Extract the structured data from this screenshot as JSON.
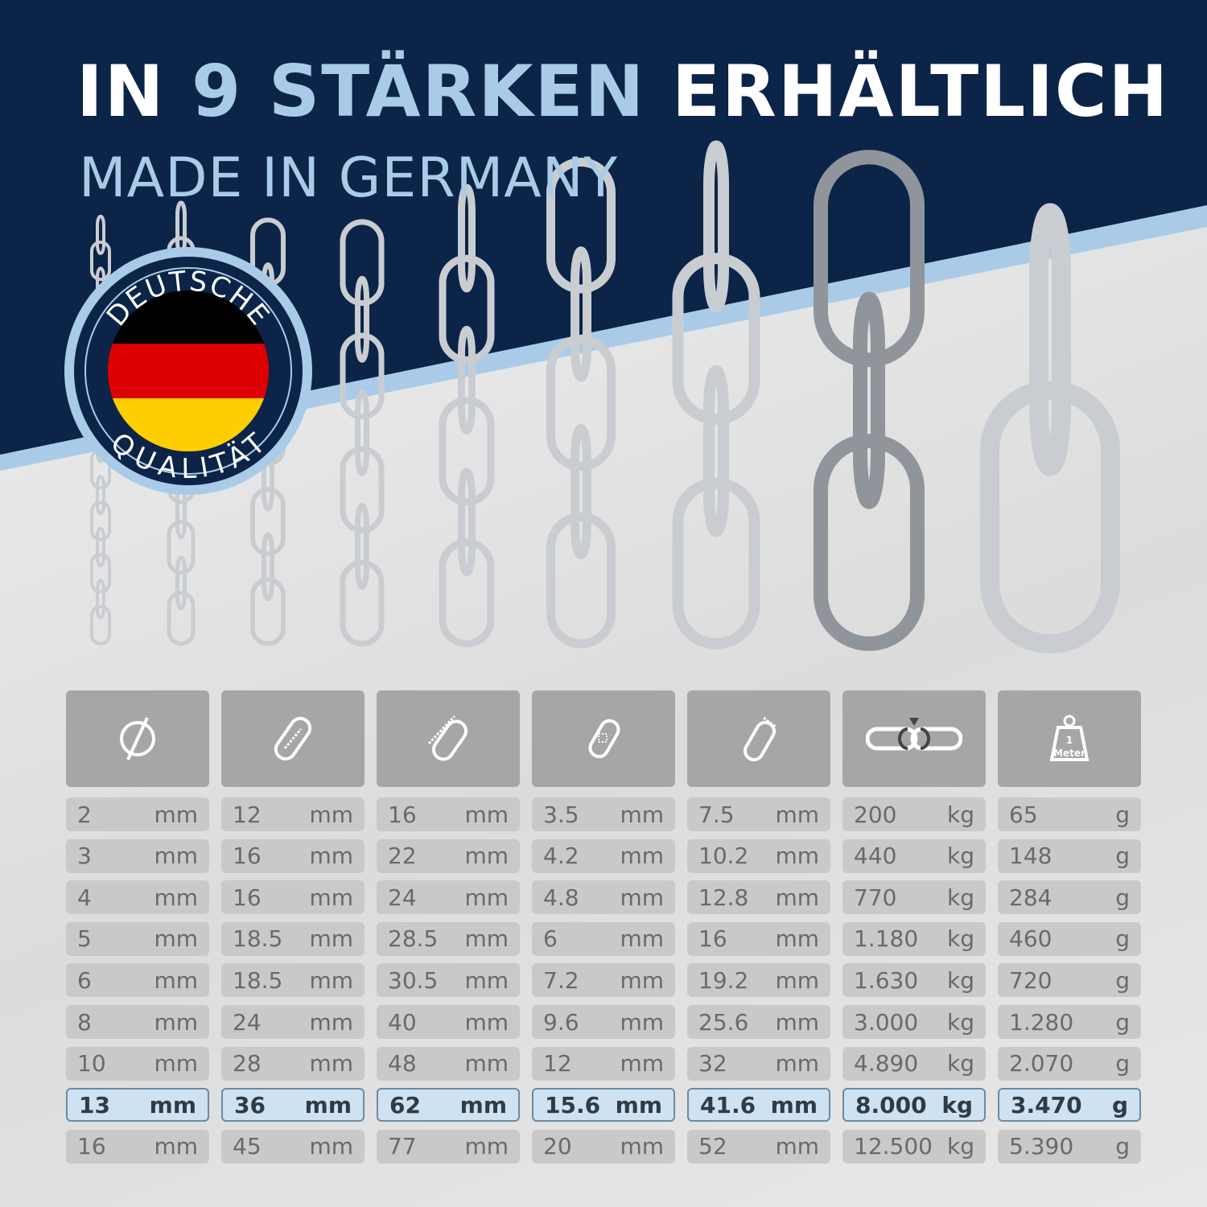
{
  "header": {
    "title_pre": "IN",
    "title_highlight": "9 STÄRKEN",
    "title_post": "ERHÄLTLICH",
    "subtitle": "MADE IN GERMANY",
    "navy": "#0b2447",
    "accent": "#a9cbe8"
  },
  "badge": {
    "top_text": "DEUTSCHE",
    "bottom_text": "QUALITÄT",
    "flag_colors": [
      "#000000",
      "#dd0000",
      "#ffce00"
    ]
  },
  "chains": {
    "count": 9,
    "highlighted_index": 7
  },
  "table": {
    "columns": [
      {
        "icon": "diameter-icon",
        "unit": "mm"
      },
      {
        "icon": "inner-length-icon",
        "unit": "mm"
      },
      {
        "icon": "outer-length-icon",
        "unit": "mm"
      },
      {
        "icon": "inner-width-icon",
        "unit": "mm"
      },
      {
        "icon": "outer-width-icon",
        "unit": "mm"
      },
      {
        "icon": "breaking-load-icon",
        "unit": "kg"
      },
      {
        "icon": "weight-per-meter-icon",
        "unit": "g",
        "icon_text_top": "1",
        "icon_text_bottom": "Meter"
      }
    ],
    "highlighted_row": 7,
    "rows": [
      [
        "2",
        "12",
        "16",
        "3.5",
        "7.5",
        "200",
        "65"
      ],
      [
        "3",
        "16",
        "22",
        "4.2",
        "10.2",
        "440",
        "148"
      ],
      [
        "4",
        "16",
        "24",
        "4.8",
        "12.8",
        "770",
        "284"
      ],
      [
        "5",
        "18.5",
        "28.5",
        "6",
        "16",
        "1.180",
        "460"
      ],
      [
        "6",
        "18.5",
        "30.5",
        "7.2",
        "19.2",
        "1.630",
        "720"
      ],
      [
        "8",
        "24",
        "40",
        "9.6",
        "25.6",
        "3.000",
        "1.280"
      ],
      [
        "10",
        "28",
        "48",
        "12",
        "32",
        "4.890",
        "2.070"
      ],
      [
        "13",
        "36",
        "62",
        "15.6",
        "41.6",
        "8.000",
        "3.470"
      ],
      [
        "16",
        "45",
        "77",
        "20",
        "52",
        "12.500",
        "5.390"
      ]
    ]
  }
}
